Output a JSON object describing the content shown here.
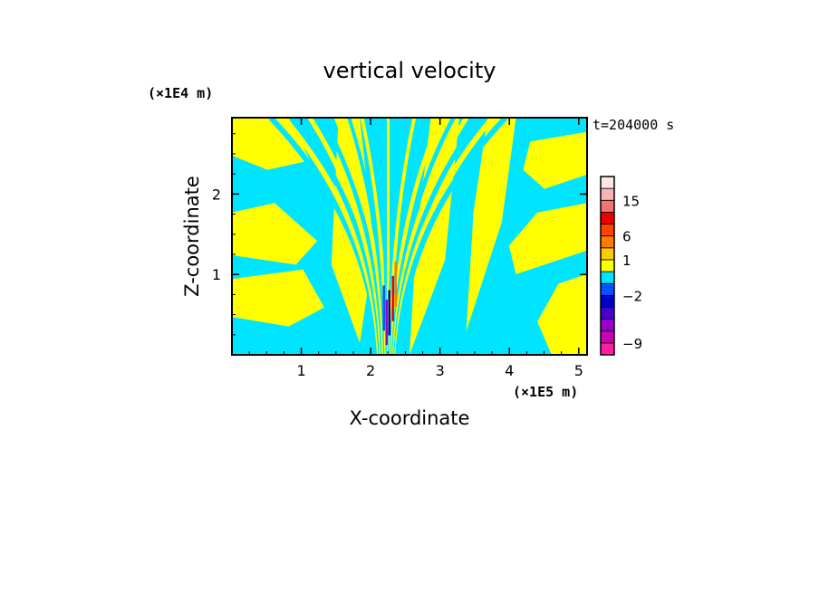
{
  "chart_data": {
    "type": "heatmap",
    "title": "vertical velocity",
    "xlabel": "X-coordinate",
    "ylabel": "Z-coordinate",
    "x_unit": "(×1E5 m)",
    "y_unit": "(×1E4 m)",
    "time_label": "t=204000 s",
    "xlim": [
      0,
      5.12
    ],
    "ylim": [
      0,
      2.95
    ],
    "x_ticks": [
      1,
      2,
      3,
      4,
      5
    ],
    "x_tick_labels": [
      "1",
      "2",
      "3",
      "4",
      "5"
    ],
    "y_ticks": [
      1,
      2
    ],
    "y_tick_labels": [
      "1",
      "2"
    ],
    "dominant_fill": {
      "positive": "#ffff00",
      "negative": "#00e5ff"
    },
    "colorbar": {
      "levels": [
        {
          "color": "#ff1ea0"
        },
        {
          "color": "#cc00b4"
        },
        {
          "color": "#9900cc"
        },
        {
          "color": "#4b00cc"
        },
        {
          "color": "#0000cc"
        },
        {
          "color": "#0055ff"
        },
        {
          "color": "#00e5ff"
        },
        {
          "color": "#ffff00"
        },
        {
          "color": "#ffcc00"
        },
        {
          "color": "#ff7a00"
        },
        {
          "color": "#ff4400"
        },
        {
          "color": "#ee0000"
        },
        {
          "color": "#f47272"
        },
        {
          "color": "#f7b4b4"
        },
        {
          "color": "#fce8e8"
        }
      ],
      "labels": [
        {
          "text": "15",
          "after_level": 13
        },
        {
          "text": "6",
          "after_level": 10
        },
        {
          "text": "1",
          "after_level": 8
        },
        {
          "text": "−2",
          "after_level": 5
        },
        {
          "text": "−9",
          "after_level": 1
        }
      ]
    }
  }
}
